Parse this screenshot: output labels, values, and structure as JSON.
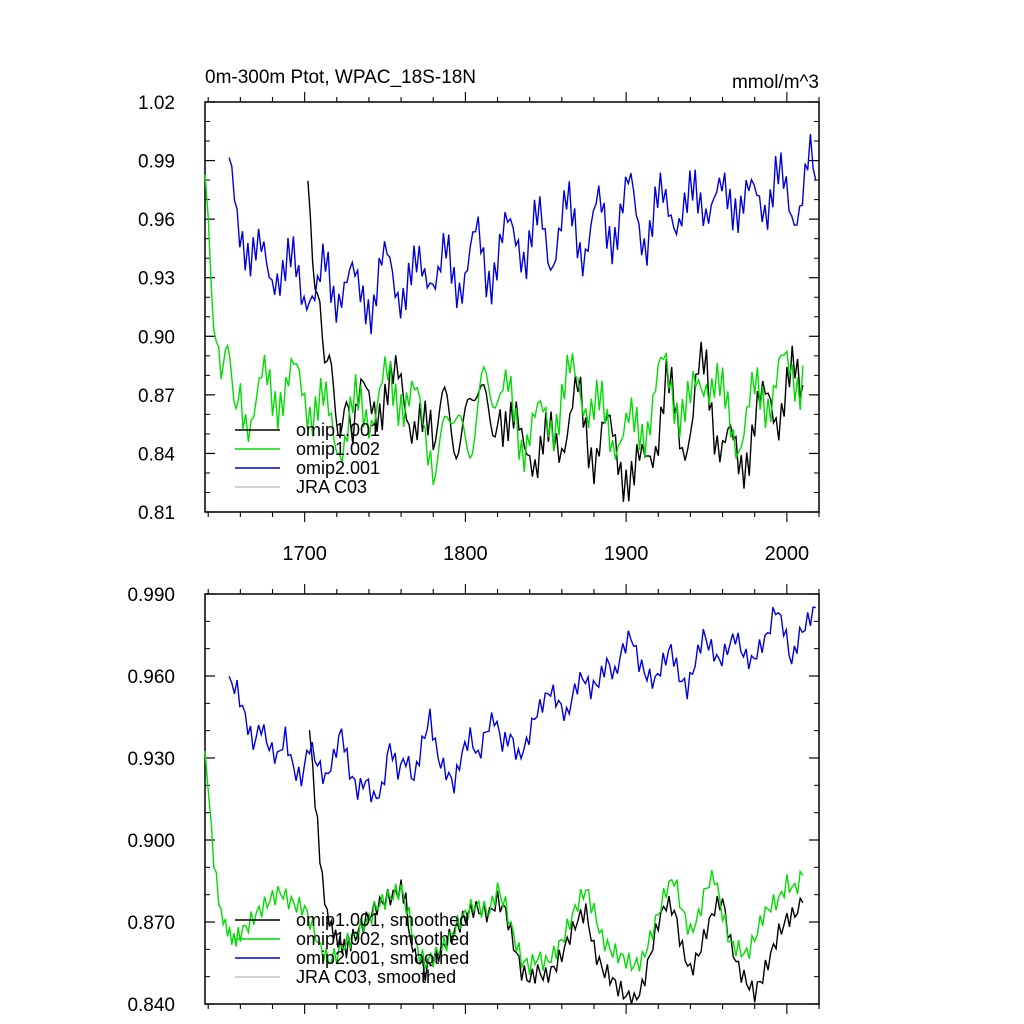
{
  "chart_data": [
    {
      "type": "line",
      "title": "0m-300m Ptot, WPAC_18S-18N",
      "units": "mmol/m^3",
      "xlim": [
        1638,
        2020
      ],
      "ylim": [
        0.81,
        1.02
      ],
      "xticks": [
        1700,
        1800,
        1900,
        2000
      ],
      "xtick_labels": [
        "1700",
        "1800",
        "1900",
        "2000"
      ],
      "yticks": [
        0.81,
        0.84,
        0.87,
        0.9,
        0.93,
        0.96,
        0.99,
        1.02
      ],
      "ytick_labels": [
        "0.81",
        "0.84",
        "0.87",
        "0.90",
        "0.93",
        "0.96",
        "0.99",
        "1.02"
      ],
      "legend": [
        "omip1.001",
        "omip1.002",
        "omip2.001",
        "JRA C03"
      ],
      "series": [
        {
          "name": "omip1.001",
          "color": "#000000",
          "x": [
            1702,
            1705,
            1708,
            1711,
            1714,
            1718,
            1722,
            1726,
            1730,
            1735,
            1740,
            1745,
            1750,
            1755,
            1760,
            1765,
            1770,
            1775,
            1780,
            1790,
            1800,
            1810,
            1820,
            1825,
            1830,
            1835,
            1840,
            1845,
            1850,
            1855,
            1860,
            1865,
            1870,
            1875,
            1880,
            1885,
            1890,
            1895,
            1900,
            1905,
            1910,
            1915,
            1920,
            1925,
            1930,
            1935,
            1940,
            1945,
            1950,
            1955,
            1960,
            1965,
            1970,
            1975,
            1980,
            1985,
            1990,
            1995,
            2000,
            2005,
            2010
          ],
          "values": [
            0.98,
            0.95,
            0.92,
            0.9,
            0.885,
            0.875,
            0.868,
            0.862,
            0.86,
            0.865,
            0.862,
            0.87,
            0.872,
            0.87,
            0.875,
            0.865,
            0.855,
            0.845,
            0.85,
            0.855,
            0.86,
            0.865,
            0.87,
            0.862,
            0.85,
            0.842,
            0.848,
            0.84,
            0.84,
            0.845,
            0.852,
            0.86,
            0.865,
            0.85,
            0.845,
            0.85,
            0.845,
            0.84,
            0.835,
            0.825,
            0.83,
            0.845,
            0.855,
            0.87,
            0.86,
            0.85,
            0.855,
            0.875,
            0.88,
            0.86,
            0.845,
            0.84,
            0.835,
            0.845,
            0.855,
            0.86,
            0.87,
            0.865,
            0.87,
            0.875,
            0.875
          ]
        },
        {
          "name": "omip1.002",
          "color": "#00dd00",
          "x": [
            1638,
            1640,
            1642,
            1645,
            1648,
            1652,
            1656,
            1660,
            1665,
            1670,
            1675,
            1680,
            1685,
            1690,
            1695,
            1700,
            1705,
            1710,
            1715,
            1720,
            1725,
            1730,
            1735,
            1740,
            1745,
            1750,
            1755,
            1760,
            1765,
            1770,
            1775,
            1780,
            1790,
            1800,
            1810,
            1820,
            1825,
            1830,
            1835,
            1840,
            1845,
            1850,
            1855,
            1860,
            1865,
            1870,
            1875,
            1880,
            1885,
            1890,
            1895,
            1900,
            1905,
            1910,
            1915,
            1920,
            1925,
            1930,
            1935,
            1940,
            1945,
            1950,
            1955,
            1960,
            1965,
            1970,
            1975,
            1980,
            1985,
            1990,
            1995,
            2000,
            2005,
            2010
          ],
          "values": [
            0.98,
            0.96,
            0.94,
            0.91,
            0.885,
            0.875,
            0.868,
            0.866,
            0.864,
            0.868,
            0.872,
            0.87,
            0.876,
            0.875,
            0.874,
            0.872,
            0.868,
            0.862,
            0.855,
            0.85,
            0.852,
            0.858,
            0.86,
            0.865,
            0.868,
            0.872,
            0.87,
            0.875,
            0.87,
            0.86,
            0.85,
            0.845,
            0.85,
            0.855,
            0.862,
            0.874,
            0.868,
            0.857,
            0.85,
            0.855,
            0.852,
            0.856,
            0.862,
            0.868,
            0.874,
            0.878,
            0.872,
            0.862,
            0.856,
            0.852,
            0.854,
            0.85,
            0.848,
            0.855,
            0.865,
            0.874,
            0.88,
            0.874,
            0.865,
            0.86,
            0.872,
            0.885,
            0.878,
            0.862,
            0.855,
            0.852,
            0.858,
            0.865,
            0.87,
            0.875,
            0.88,
            0.878,
            0.882,
            0.885
          ]
        },
        {
          "name": "omip2.001",
          "color": "#0000dd",
          "x": [
            1653,
            1658,
            1663,
            1668,
            1673,
            1678,
            1683,
            1688,
            1693,
            1698,
            1703,
            1708,
            1713,
            1718,
            1723,
            1728,
            1733,
            1738,
            1743,
            1748,
            1753,
            1758,
            1763,
            1768,
            1773,
            1778,
            1783,
            1788,
            1793,
            1798,
            1803,
            1808,
            1813,
            1818,
            1823,
            1828,
            1833,
            1838,
            1843,
            1848,
            1853,
            1858,
            1863,
            1868,
            1873,
            1878,
            1883,
            1888,
            1893,
            1898,
            1903,
            1908,
            1913,
            1918,
            1923,
            1928,
            1933,
            1938,
            1943,
            1948,
            1953,
            1958,
            1963,
            1968,
            1973,
            1978,
            1983,
            1988,
            1993,
            1998,
            2003,
            2008,
            2013,
            2018
          ],
          "values": [
            0.98,
            0.955,
            0.955,
            0.945,
            0.935,
            0.93,
            0.94,
            0.935,
            0.93,
            0.925,
            0.93,
            0.92,
            0.93,
            0.925,
            0.93,
            0.925,
            0.92,
            0.925,
            0.92,
            0.93,
            0.935,
            0.93,
            0.925,
            0.925,
            0.935,
            0.94,
            0.93,
            0.935,
            0.93,
            0.935,
            0.94,
            0.945,
            0.935,
            0.94,
            0.945,
            0.95,
            0.955,
            0.945,
            0.95,
            0.955,
            0.945,
            0.955,
            0.96,
            0.955,
            0.95,
            0.955,
            0.96,
            0.955,
            0.96,
            0.965,
            0.97,
            0.96,
            0.955,
            0.96,
            0.965,
            0.97,
            0.965,
            0.96,
            0.97,
            0.975,
            0.97,
            0.965,
            0.97,
            0.975,
            0.97,
            0.965,
            0.97,
            0.975,
            0.98,
            0.97,
            0.965,
            0.975,
            0.985,
            0.98
          ]
        },
        {
          "name": "JRA C03",
          "color": "#c0c0c0",
          "x": [],
          "values": []
        }
      ]
    },
    {
      "type": "line",
      "title": "",
      "xlim": [
        1638,
        2020
      ],
      "ylim": [
        0.84,
        0.99
      ],
      "yticks": [
        0.84,
        0.87,
        0.9,
        0.93,
        0.96,
        0.99
      ],
      "ytick_labels": [
        "0.840",
        "0.870",
        "0.900",
        "0.930",
        "0.960",
        "0.990"
      ],
      "legend": [
        "omip1.001, smoothed",
        "omip1.002, smoothed",
        "omip2.001, smoothed",
        "JRA C03, smoothed"
      ],
      "series": [
        {
          "name": "omip1.001, smoothed",
          "color": "#000000",
          "x": [
            1703,
            1705,
            1708,
            1711,
            1714,
            1718,
            1722,
            1726,
            1730,
            1735,
            1740,
            1745,
            1750,
            1755,
            1760,
            1763,
            1766,
            1770,
            1775,
            1780,
            1785,
            1790,
            1795,
            1800,
            1805,
            1810,
            1815,
            1820,
            1825,
            1830,
            1835,
            1840,
            1845,
            1850,
            1855,
            1860,
            1865,
            1870,
            1875,
            1880,
            1885,
            1890,
            1895,
            1900,
            1905,
            1910,
            1915,
            1920,
            1925,
            1930,
            1935,
            1940,
            1945,
            1950,
            1955,
            1960,
            1965,
            1970,
            1975,
            1980,
            1985,
            1990,
            1995,
            2000,
            2005,
            2010
          ],
          "values": [
            0.938,
            0.925,
            0.905,
            0.885,
            0.873,
            0.866,
            0.862,
            0.86,
            0.864,
            0.868,
            0.872,
            0.876,
            0.878,
            0.88,
            0.882,
            0.878,
            0.862,
            0.857,
            0.852,
            0.856,
            0.86,
            0.864,
            0.868,
            0.872,
            0.875,
            0.874,
            0.873,
            0.878,
            0.874,
            0.862,
            0.852,
            0.849,
            0.852,
            0.85,
            0.853,
            0.858,
            0.865,
            0.871,
            0.874,
            0.86,
            0.853,
            0.85,
            0.846,
            0.843,
            0.841,
            0.846,
            0.858,
            0.87,
            0.877,
            0.874,
            0.86,
            0.852,
            0.858,
            0.867,
            0.875,
            0.878,
            0.862,
            0.853,
            0.848,
            0.844,
            0.85,
            0.858,
            0.866,
            0.871,
            0.873,
            0.877
          ]
        },
        {
          "name": "omip1.002, smoothed",
          "color": "#00dd00",
          "x": [
            1638,
            1640,
            1642,
            1645,
            1648,
            1652,
            1656,
            1660,
            1665,
            1670,
            1675,
            1680,
            1685,
            1690,
            1695,
            1700,
            1705,
            1710,
            1715,
            1720,
            1725,
            1730,
            1735,
            1740,
            1745,
            1750,
            1755,
            1760,
            1765,
            1770,
            1775,
            1780,
            1785,
            1790,
            1795,
            1800,
            1805,
            1810,
            1815,
            1820,
            1825,
            1830,
            1835,
            1840,
            1845,
            1850,
            1855,
            1860,
            1865,
            1870,
            1875,
            1880,
            1885,
            1890,
            1895,
            1900,
            1905,
            1910,
            1915,
            1920,
            1925,
            1930,
            1935,
            1940,
            1945,
            1950,
            1955,
            1960,
            1965,
            1970,
            1975,
            1980,
            1985,
            1990,
            1995,
            2000,
            2005,
            2010
          ],
          "values": [
            0.936,
            0.918,
            0.902,
            0.885,
            0.873,
            0.867,
            0.863,
            0.866,
            0.869,
            0.873,
            0.876,
            0.879,
            0.881,
            0.878,
            0.876,
            0.875,
            0.868,
            0.86,
            0.856,
            0.858,
            0.862,
            0.864,
            0.868,
            0.871,
            0.876,
            0.878,
            0.88,
            0.882,
            0.872,
            0.86,
            0.855,
            0.857,
            0.86,
            0.864,
            0.869,
            0.873,
            0.876,
            0.875,
            0.874,
            0.882,
            0.876,
            0.865,
            0.856,
            0.854,
            0.857,
            0.855,
            0.858,
            0.863,
            0.87,
            0.877,
            0.882,
            0.874,
            0.864,
            0.86,
            0.858,
            0.856,
            0.854,
            0.856,
            0.864,
            0.873,
            0.882,
            0.886,
            0.874,
            0.866,
            0.872,
            0.883,
            0.887,
            0.873,
            0.862,
            0.86,
            0.858,
            0.864,
            0.872,
            0.876,
            0.878,
            0.884,
            0.882,
            0.887
          ]
        },
        {
          "name": "omip2.001, smoothed",
          "color": "#0000dd",
          "x": [
            1653,
            1658,
            1663,
            1668,
            1673,
            1678,
            1683,
            1688,
            1693,
            1698,
            1703,
            1708,
            1713,
            1718,
            1723,
            1728,
            1733,
            1738,
            1743,
            1748,
            1753,
            1758,
            1763,
            1768,
            1773,
            1778,
            1783,
            1788,
            1793,
            1798,
            1803,
            1808,
            1813,
            1818,
            1823,
            1828,
            1833,
            1838,
            1843,
            1848,
            1853,
            1858,
            1863,
            1868,
            1873,
            1878,
            1883,
            1888,
            1893,
            1898,
            1903,
            1908,
            1913,
            1918,
            1923,
            1928,
            1933,
            1938,
            1943,
            1948,
            1953,
            1958,
            1963,
            1968,
            1973,
            1978,
            1983,
            1988,
            1993,
            1998,
            2003,
            2008,
            2013,
            2018
          ],
          "values": [
            0.958,
            0.955,
            0.945,
            0.935,
            0.942,
            0.934,
            0.93,
            0.938,
            0.926,
            0.922,
            0.935,
            0.928,
            0.922,
            0.93,
            0.94,
            0.925,
            0.918,
            0.922,
            0.915,
            0.918,
            0.935,
            0.925,
            0.93,
            0.922,
            0.935,
            0.945,
            0.93,
            0.925,
            0.92,
            0.932,
            0.938,
            0.93,
            0.94,
            0.945,
            0.935,
            0.938,
            0.93,
            0.935,
            0.945,
            0.95,
            0.955,
            0.95,
            0.945,
            0.955,
            0.96,
            0.955,
            0.958,
            0.965,
            0.96,
            0.97,
            0.975,
            0.965,
            0.96,
            0.958,
            0.965,
            0.97,
            0.96,
            0.955,
            0.965,
            0.975,
            0.97,
            0.965,
            0.97,
            0.975,
            0.968,
            0.965,
            0.97,
            0.975,
            0.985,
            0.978,
            0.965,
            0.975,
            0.98,
            0.985
          ]
        },
        {
          "name": "JRA C03, smoothed",
          "color": "#c0c0c0",
          "x": [],
          "values": []
        }
      ]
    }
  ]
}
